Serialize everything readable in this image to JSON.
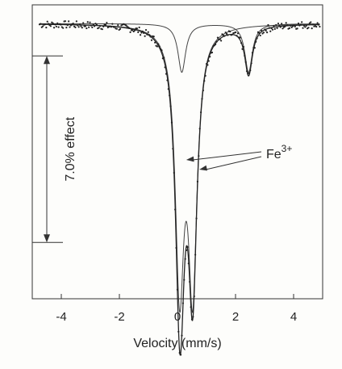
{
  "chart_data": {
    "type": "line",
    "title": "",
    "xlabel": "Velocity (mm/s)",
    "ylabel": "",
    "xlim": [
      -5,
      5
    ],
    "x_ticks": [
      -4,
      -2,
      0,
      2,
      4
    ],
    "x_tick_labels": [
      "-4",
      "-2",
      "0",
      "2",
      "4"
    ],
    "y_ticks_visible": false,
    "grid": false,
    "legend": "none",
    "series": [
      {
        "name": "",
        "kind": "fitted-total",
        "baseline": 1.0,
        "doublets": [
          {
            "center": 0.3,
            "splitting": 0.45,
            "depth_fraction": 0.081,
            "hwhm": 0.18
          },
          {
            "center": 1.3,
            "splitting": 2.3,
            "depth_fraction": 0.0155,
            "hwhm": 0.16
          }
        ]
      },
      {
        "name": "",
        "kind": "component-doublet",
        "center": 0.3,
        "splitting": 0.45,
        "depth_fraction": 0.081,
        "hwhm": 0.18
      },
      {
        "name": "",
        "kind": "component-doublet",
        "center": 1.3,
        "splitting": 2.3,
        "depth_fraction": 0.0155,
        "hwhm": 0.16
      },
      {
        "name": "",
        "kind": "data-points",
        "noise": 0.0012
      }
    ],
    "annotations": [
      {
        "kind": "scale-bar",
        "text": "7.0% effect",
        "from_transmission": 1.0,
        "to_transmission": 0.93
      },
      {
        "kind": "label-with-arrows",
        "text": "Fe",
        "superscript": "3+",
        "targets_velocity": [
          0.08,
          0.53
        ]
      }
    ]
  }
}
